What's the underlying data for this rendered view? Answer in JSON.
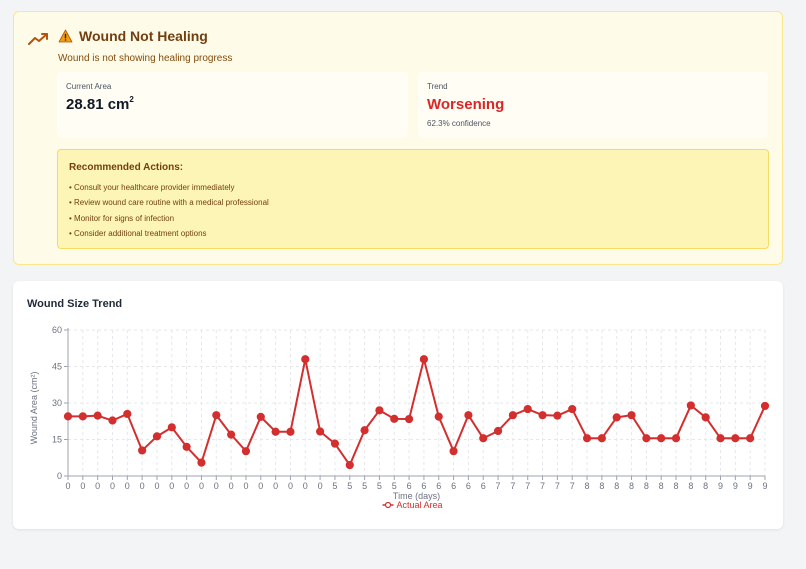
{
  "alert": {
    "title": "Wound Not Healing",
    "subtitle": "Wound is not showing healing progress",
    "trend_icon": "trending-up-icon",
    "warning_icon": "warning-triangle-icon",
    "colors": {
      "background": "#fefbe8",
      "border": "#fbe68a",
      "danger": "#dc2626"
    }
  },
  "current_area": {
    "label": "Current Area",
    "value": "28.81 cm",
    "unit_sup": "2"
  },
  "trend": {
    "label": "Trend",
    "value": "Worsening",
    "confidence": "62.3% confidence"
  },
  "actions": {
    "title": "Recommended Actions:",
    "items": [
      "• Consult your healthcare provider immediately",
      "• Review wound care routine with a medical professional",
      "• Monitor for signs of infection",
      "• Consider additional treatment options"
    ]
  },
  "chart": {
    "title": "Wound Size Trend"
  },
  "chart_data": {
    "type": "line",
    "xlabel": "Time (days)",
    "ylabel": "Wound Area (cm²)",
    "ylim": [
      0,
      60
    ],
    "yticks": [
      0,
      15,
      30,
      45,
      60
    ],
    "grid": true,
    "legend": "bottom",
    "x": [
      "0",
      "0",
      "0",
      "0",
      "0",
      "0",
      "0",
      "0",
      "0",
      "0",
      "0",
      "0",
      "0",
      "0",
      "0",
      "0",
      "0",
      "0",
      "5",
      "5",
      "5",
      "5",
      "5",
      "6",
      "6",
      "6",
      "6",
      "6",
      "6",
      "7",
      "7",
      "7",
      "7",
      "7",
      "7",
      "8",
      "8",
      "8",
      "8",
      "8",
      "8",
      "8",
      "8",
      "8",
      "9",
      "9",
      "9",
      "9"
    ],
    "series": [
      {
        "name": "Actual Area",
        "color": "#d32f2f",
        "values": [
          24.5,
          24.5,
          24.8,
          22.8,
          25.5,
          10.5,
          16.3,
          20,
          12,
          5.5,
          25,
          17,
          10.2,
          24.3,
          18.2,
          18.2,
          48,
          18.3,
          13.3,
          4.5,
          18.8,
          27,
          23.5,
          23.4,
          48,
          24.4,
          10.2,
          25,
          15.5,
          18.5,
          25,
          27.5,
          25,
          24.8,
          27.5,
          15.5,
          15.5,
          24.1,
          25,
          15.5,
          15.5,
          15.5,
          29,
          24.1,
          15.5,
          15.5,
          15.5,
          28.8
        ]
      }
    ]
  }
}
